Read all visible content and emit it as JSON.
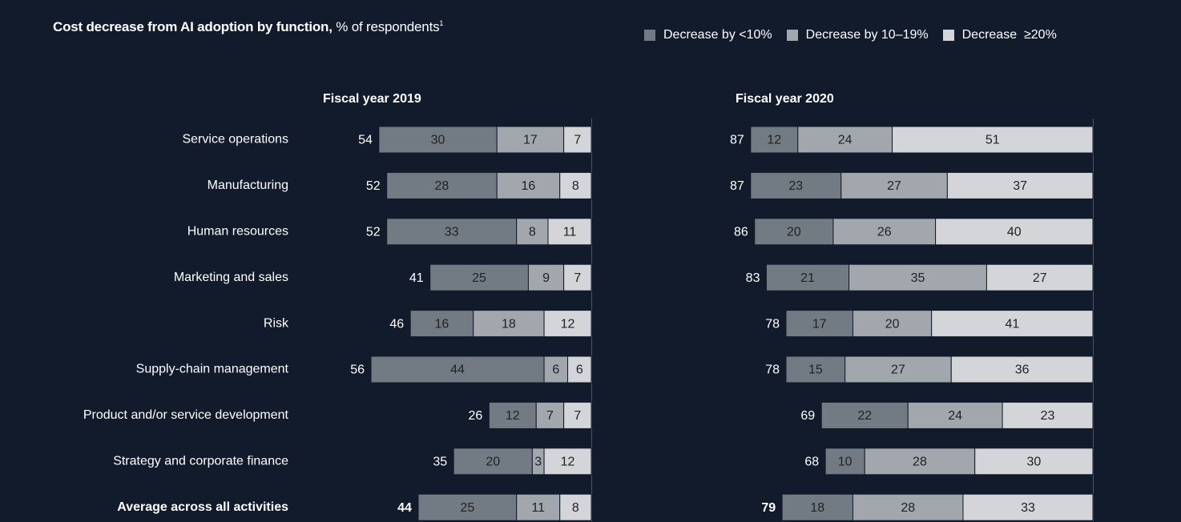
{
  "chart_data": {
    "type": "bar",
    "subtype": "stacked-horizontal",
    "title": "Cost decrease from AI adoption by function,",
    "title_suffix": "% of respondents",
    "title_footnote": "1",
    "legend_position": "top-right",
    "colors": {
      "background": "#111b2b",
      "lt10": "#727a84",
      "10to19": "#a2a7ad",
      "gte20": "#d3d5d8",
      "axis": "#4a5466",
      "bar_text": "#222222",
      "label_text": "#ffffff"
    },
    "legend": [
      {
        "key": "lt10",
        "label": "Decrease by <10%"
      },
      {
        "key": "10to19",
        "label": "Decrease by 10–19%"
      },
      {
        "key": "gte20",
        "label": "Decrease  ≥20%"
      }
    ],
    "categories": [
      "Service operations",
      "Manufacturing",
      "Human resources",
      "Marketing and sales",
      "Risk",
      "Supply-chain management",
      "Product and/or service development",
      "Strategy and corporate finance",
      "Average across all activities"
    ],
    "bold_categories": [
      "Average across all activities"
    ],
    "panels": [
      {
        "title": "Fiscal year 2019",
        "totals": [
          54,
          52,
          52,
          41,
          46,
          56,
          26,
          35,
          44
        ],
        "series": [
          {
            "name": "Decrease by <10%",
            "key": "lt10",
            "values": [
              30,
              28,
              33,
              25,
              16,
              44,
              12,
              20,
              25
            ]
          },
          {
            "name": "Decrease by 10–19%",
            "key": "10to19",
            "values": [
              17,
              16,
              8,
              9,
              18,
              6,
              7,
              3,
              11
            ]
          },
          {
            "name": "Decrease ≥20%",
            "key": "gte20",
            "values": [
              7,
              8,
              11,
              7,
              12,
              6,
              7,
              12,
              8
            ]
          }
        ]
      },
      {
        "title": "Fiscal year 2020",
        "totals": [
          87,
          87,
          86,
          83,
          78,
          78,
          69,
          68,
          79
        ],
        "series": [
          {
            "name": "Decrease by <10%",
            "key": "lt10",
            "values": [
              12,
              23,
              20,
              21,
              17,
              15,
              22,
              10,
              18
            ]
          },
          {
            "name": "Decrease by 10–19%",
            "key": "10to19",
            "values": [
              24,
              27,
              26,
              35,
              20,
              27,
              24,
              28,
              28
            ]
          },
          {
            "name": "Decrease ≥20%",
            "key": "gte20",
            "values": [
              51,
              37,
              40,
              27,
              41,
              36,
              23,
              30,
              33
            ]
          }
        ]
      }
    ],
    "xlim": [
      0,
      100
    ]
  }
}
